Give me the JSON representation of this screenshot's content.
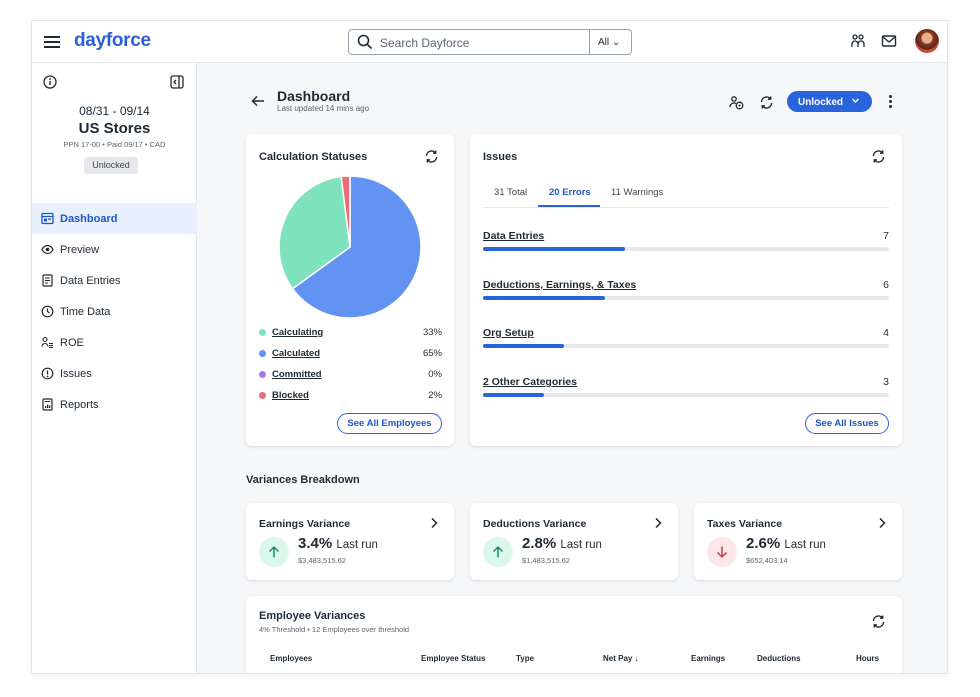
{
  "topbar": {
    "logo": "dayforce",
    "search_placeholder": "Search Dayforce",
    "search_scope": "All"
  },
  "sidebar": {
    "dates": "08/31 - 09/14",
    "store": "US Stores",
    "sub": "PPN 17-00 • Paid 09/17 • CAD",
    "status_badge": "Unlocked",
    "items": [
      {
        "label": "Dashboard",
        "icon": "dashboard-icon",
        "active": true
      },
      {
        "label": "Preview",
        "icon": "eye-icon"
      },
      {
        "label": "Data Entries",
        "icon": "document-icon"
      },
      {
        "label": "Time Data",
        "icon": "clock-icon"
      },
      {
        "label": "ROE",
        "icon": "person-list-icon"
      },
      {
        "label": "Issues",
        "icon": "alert-icon"
      },
      {
        "label": "Reports",
        "icon": "report-icon"
      }
    ]
  },
  "header": {
    "title": "Dashboard",
    "updated": "Last updated 14 mins ago",
    "unlock_label": "Unlocked"
  },
  "calc": {
    "title": "Calculation Statuses",
    "legend": [
      {
        "label": "Calculating",
        "value": "33%",
        "pct": 33,
        "color": "#7ee3bd"
      },
      {
        "label": "Calculated",
        "value": "65%",
        "pct": 65,
        "color": "#6393f2"
      },
      {
        "label": "Committed",
        "value": "0%",
        "pct": 0,
        "color": "#a678e6"
      },
      {
        "label": "Blocked",
        "value": "2%",
        "pct": 2,
        "color": "#ea6e76"
      }
    ],
    "see_all": "See All Employees"
  },
  "issues": {
    "title": "Issues",
    "tabs": [
      "31 Total",
      "20 Errors",
      "11 Warnings"
    ],
    "active_tab": 1,
    "rows": [
      {
        "label": "Data Entries",
        "count": "7",
        "fill": 0.35
      },
      {
        "label": "Deductions, Earnings, & Taxes",
        "count": "6",
        "fill": 0.3
      },
      {
        "label": "Org Setup",
        "count": "4",
        "fill": 0.2
      },
      {
        "label": "2 Other Categories",
        "count": "3",
        "fill": 0.15
      }
    ],
    "see_all": "See All Issues"
  },
  "variances": {
    "title": "Variances Breakdown",
    "cards": [
      {
        "title": "Earnings Variance",
        "pct": "3.4%",
        "last_run": "Last run",
        "amount": "$3,483,515.62",
        "direction": "up"
      },
      {
        "title": "Deductions Variance",
        "pct": "2.8%",
        "last_run": "Last run",
        "amount": "$1,483,515.62",
        "direction": "up"
      },
      {
        "title": "Taxes Variance",
        "pct": "2.6%",
        "last_run": "Last run",
        "amount": "$652,403.14",
        "direction": "down"
      }
    ]
  },
  "employee_variances": {
    "title": "Employee Variances",
    "subtitle": "4% Threshold • 12 Employees over threshold",
    "columns": [
      "Employees",
      "Employee Status",
      "Type",
      "Net Pay ↓",
      "Earnings",
      "Deductions",
      "Hours"
    ]
  },
  "colors": {
    "accent": "#2a64dd",
    "up_bg": "#dcf7ec",
    "up_fg": "#1a8a5c",
    "down_bg": "#fde7e8",
    "down_fg": "#d13b45"
  }
}
